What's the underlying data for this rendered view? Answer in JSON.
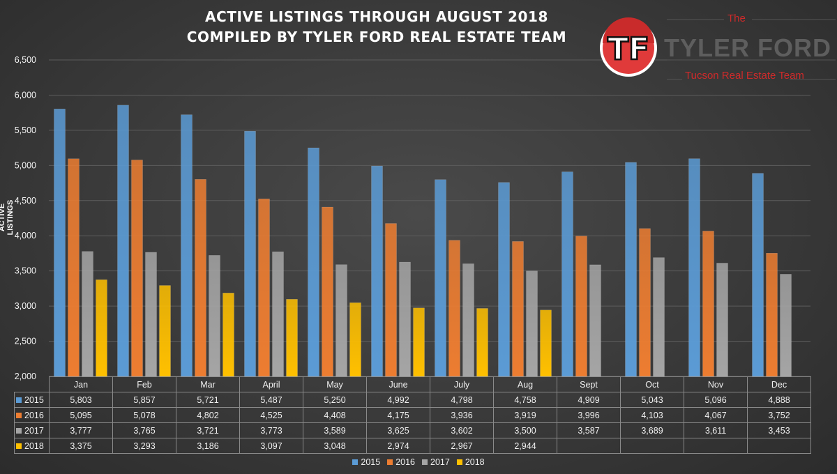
{
  "title_line1": "ACTIVE LISTINGS THROUGH AUGUST 2018",
  "title_line2": "COMPILED BY TYLER FORD REAL ESTATE TEAM",
  "logo": {
    "the": "The",
    "name": "TYLER FORD",
    "sub": "Tucson Real Estate Team",
    "monogram": "TF"
  },
  "colors": {
    "2015": "#5b9bd5",
    "2016": "#ed7d31",
    "2017": "#a5a5a5",
    "2018": "#ffc000",
    "grid": "#5c5c5c",
    "text": "#f2f2f2",
    "logo_red": "#cf2a2a"
  },
  "chart_data": {
    "type": "bar",
    "title": "ACTIVE LISTINGS THROUGH AUGUST 2018\nCOMPILED BY TYLER FORD REAL ESTATE TEAM",
    "ylabel": "ACTIVE LISTINGS",
    "xlabel": "",
    "ylim": [
      2000,
      6500
    ],
    "yticks": [
      2000,
      2500,
      3000,
      3500,
      4000,
      4500,
      5000,
      5500,
      6000,
      6500
    ],
    "ytick_labels": [
      "2,000",
      "2,500",
      "3,000",
      "3,500",
      "4,000",
      "4,500",
      "5,000",
      "5,500",
      "6,000",
      "6,500"
    ],
    "grid": true,
    "legend_position": "bottom",
    "categories": [
      "Jan",
      "Feb",
      "Mar",
      "April",
      "May",
      "June",
      "July",
      "Aug",
      "Sept",
      "Oct",
      "Nov",
      "Dec"
    ],
    "series": [
      {
        "name": "2015",
        "values": [
          5803,
          5857,
          5721,
          5487,
          5250,
          4992,
          4798,
          4758,
          4909,
          5043,
          5096,
          4888
        ],
        "labels": [
          "5,803",
          "5,857",
          "5,721",
          "5,487",
          "5,250",
          "4,992",
          "4,798",
          "4,758",
          "4,909",
          "5,043",
          "5,096",
          "4,888"
        ]
      },
      {
        "name": "2016",
        "values": [
          5095,
          5078,
          4802,
          4525,
          4408,
          4175,
          3936,
          3919,
          3996,
          4103,
          4067,
          3752
        ],
        "labels": [
          "5,095",
          "5,078",
          "4,802",
          "4,525",
          "4,408",
          "4,175",
          "3,936",
          "3,919",
          "3,996",
          "4,103",
          "4,067",
          "3,752"
        ]
      },
      {
        "name": "2017",
        "values": [
          3777,
          3765,
          3721,
          3773,
          3589,
          3625,
          3602,
          3500,
          3587,
          3689,
          3611,
          3453
        ],
        "labels": [
          "3,777",
          "3,765",
          "3,721",
          "3,773",
          "3,589",
          "3,625",
          "3,602",
          "3,500",
          "3,587",
          "3,689",
          "3,611",
          "3,453"
        ]
      },
      {
        "name": "2018",
        "values": [
          3375,
          3293,
          3186,
          3097,
          3048,
          2974,
          2967,
          2944,
          null,
          null,
          null,
          null
        ],
        "labels": [
          "3,375",
          "3,293",
          "3,186",
          "3,097",
          "3,048",
          "2,974",
          "2,967",
          "2,944",
          "",
          "",
          "",
          ""
        ]
      }
    ]
  }
}
